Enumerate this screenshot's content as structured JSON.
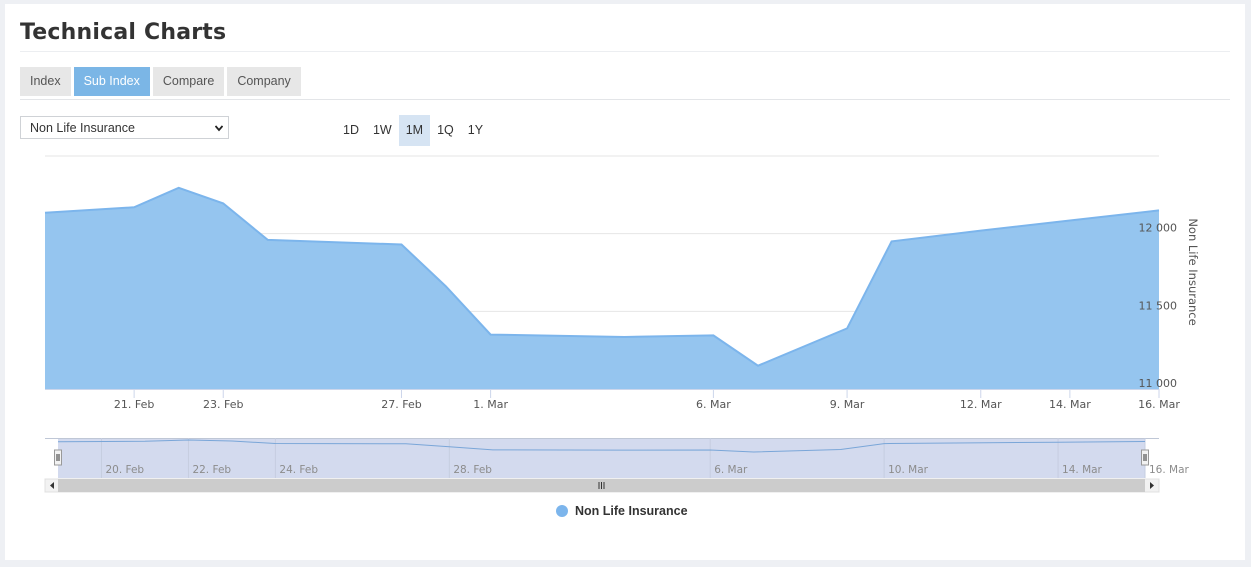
{
  "header": {
    "title": "Technical Charts"
  },
  "tabs": [
    {
      "label": "Index",
      "active": false
    },
    {
      "label": "Sub Index",
      "active": true
    },
    {
      "label": "Compare",
      "active": false
    },
    {
      "label": "Company",
      "active": false
    }
  ],
  "selector": {
    "value": "Non Life Insurance"
  },
  "ranges": [
    {
      "label": "1D",
      "active": false
    },
    {
      "label": "1W",
      "active": false
    },
    {
      "label": "1M",
      "active": true
    },
    {
      "label": "1Q",
      "active": false
    },
    {
      "label": "1Y",
      "active": false
    }
  ],
  "colors": {
    "series": "#7cb5ec",
    "fill": "#95c5ef",
    "navigator": "#d3daee"
  },
  "chart_data": {
    "type": "area",
    "series": [
      {
        "name": "Non Life Insurance",
        "x": [
          "2021-02-19",
          "2021-02-21",
          "2021-02-22",
          "2021-02-23",
          "2021-02-24",
          "2021-02-27",
          "2021-02-28",
          "2021-03-01",
          "2021-03-04",
          "2021-03-06",
          "2021-03-07",
          "2021-03-09",
          "2021-03-10",
          "2021-03-12",
          "2021-03-14",
          "2021-03-16"
        ],
        "values": [
          12135,
          12170,
          12295,
          12195,
          11960,
          11930,
          11660,
          11350,
          11335,
          11345,
          11150,
          11390,
          11950,
          12020,
          12085,
          12150
        ]
      }
    ],
    "yaxis": {
      "title": "Non Life Insurance",
      "ticks": [
        "11 000",
        "11 500",
        "12 000"
      ],
      "position": "right",
      "ylim": [
        11000,
        12500
      ]
    },
    "xaxis": {
      "ticks": [
        {
          "date": "2021-02-21",
          "label": "21. Feb"
        },
        {
          "date": "2021-02-23",
          "label": "23. Feb"
        },
        {
          "date": "2021-02-27",
          "label": "27. Feb"
        },
        {
          "date": "2021-03-01",
          "label": "1. Mar"
        },
        {
          "date": "2021-03-06",
          "label": "6. Mar"
        },
        {
          "date": "2021-03-09",
          "label": "9. Mar"
        },
        {
          "date": "2021-03-12",
          "label": "12. Mar"
        },
        {
          "date": "2021-03-14",
          "label": "14. Mar"
        },
        {
          "date": "2021-03-16",
          "label": "16. Mar"
        }
      ]
    },
    "navigator": {
      "ticks": [
        {
          "date": "2021-02-20",
          "label": "20. Feb"
        },
        {
          "date": "2021-02-22",
          "label": "22. Feb"
        },
        {
          "date": "2021-02-24",
          "label": "24. Feb"
        },
        {
          "date": "2021-02-28",
          "label": "28. Feb"
        },
        {
          "date": "2021-03-06",
          "label": "6. Mar"
        },
        {
          "date": "2021-03-10",
          "label": "10. Mar"
        },
        {
          "date": "2021-03-14",
          "label": "14. Mar"
        },
        {
          "date": "2021-03-16",
          "label": "16. Mar"
        }
      ]
    },
    "grid": true,
    "legend": "bottom-center"
  }
}
